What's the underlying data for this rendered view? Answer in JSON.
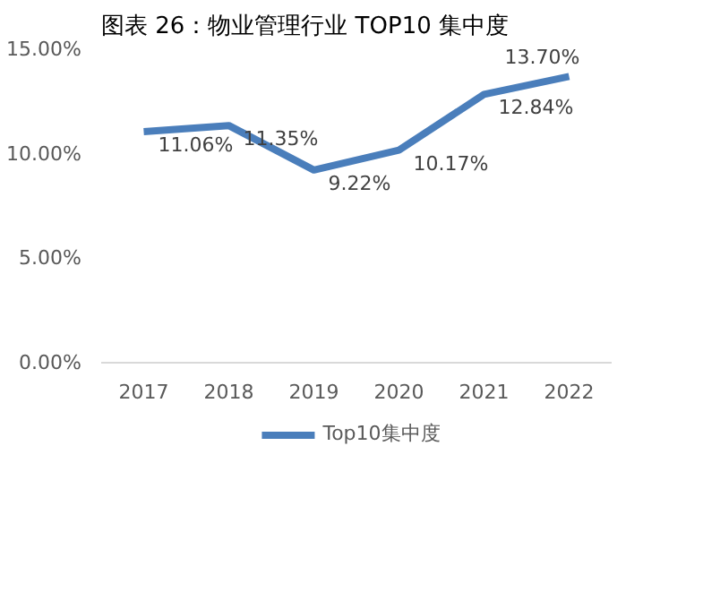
{
  "chart_data": {
    "type": "line",
    "title": "图表 26：物业管理行业 TOP10 集中度",
    "categories": [
      "2017",
      "2018",
      "2019",
      "2020",
      "2021",
      "2022"
    ],
    "series": [
      {
        "name": "Top10集中度",
        "color": "#4a7ebb",
        "values": [
          11.06,
          11.35,
          9.22,
          10.17,
          12.84,
          13.7
        ],
        "value_labels": [
          "11.06%",
          "11.35%",
          "9.22%",
          "10.17%",
          "12.84%",
          "13.70%"
        ]
      }
    ],
    "ylim": [
      0,
      15
    ],
    "yticks": [
      {
        "value": 0,
        "label": "0.00%"
      },
      {
        "value": 5,
        "label": "5.00%"
      },
      {
        "value": 10,
        "label": "10.00%"
      },
      {
        "value": 15,
        "label": "15.00%"
      }
    ],
    "grid": false,
    "legend": "bottom",
    "marker": "none",
    "line_style": "solid"
  }
}
